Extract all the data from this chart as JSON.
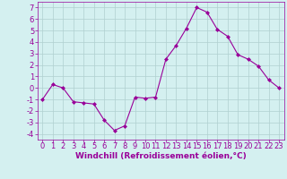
{
  "x": [
    0,
    1,
    2,
    3,
    4,
    5,
    6,
    7,
    8,
    9,
    10,
    11,
    12,
    13,
    14,
    15,
    16,
    17,
    18,
    19,
    20,
    21,
    22,
    23
  ],
  "y": [
    -1,
    0.3,
    0.0,
    -1.2,
    -1.3,
    -1.4,
    -2.8,
    -3.7,
    -3.3,
    -0.8,
    -0.9,
    -0.8,
    2.5,
    3.7,
    5.2,
    7.0,
    6.6,
    5.1,
    4.5,
    2.9,
    2.5,
    1.9,
    0.7,
    0.0
  ],
  "line_color": "#990099",
  "marker": "D",
  "marker_size": 2,
  "background_color": "#d4f0f0",
  "grid_color": "#b0d0d0",
  "xlabel": "Windchill (Refroidissement éolien,°C)",
  "ylim": [
    -4.5,
    7.5
  ],
  "xlim": [
    -0.5,
    23.5
  ],
  "yticks": [
    -4,
    -3,
    -2,
    -1,
    0,
    1,
    2,
    3,
    4,
    5,
    6,
    7
  ],
  "xticks": [
    0,
    1,
    2,
    3,
    4,
    5,
    6,
    7,
    8,
    9,
    10,
    11,
    12,
    13,
    14,
    15,
    16,
    17,
    18,
    19,
    20,
    21,
    22,
    23
  ],
  "tick_color": "#990099",
  "label_color": "#990099",
  "axis_fontsize": 6.5,
  "tick_fontsize": 6.0
}
